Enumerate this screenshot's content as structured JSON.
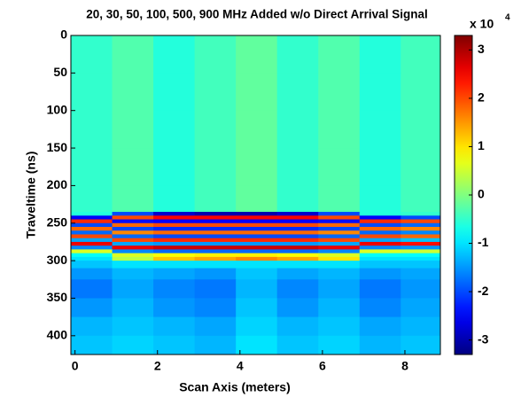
{
  "chart_data": {
    "type": "heatmap",
    "title": "20, 30, 50, 100, 500, 900 MHz Added w/o Direct Arrival Signal",
    "x_label": "Scan Axis (meters)",
    "y_label": "Traveltime (ns)",
    "colorbar_multiplier": "x 10",
    "colorbar_exponent": "4",
    "colormap": "jet",
    "xlim": [
      -0.1,
      8.86
    ],
    "ylim": [
      0,
      425
    ],
    "y_reversed": true,
    "xticks": [
      0,
      2,
      4,
      6,
      8
    ],
    "yticks": [
      0,
      50,
      100,
      150,
      200,
      250,
      300,
      350,
      400
    ],
    "clim": [
      -33000,
      33000
    ],
    "cticks": [
      {
        "value": -30000,
        "label": "-3"
      },
      {
        "value": -20000,
        "label": "-2"
      },
      {
        "value": -10000,
        "label": "-1"
      },
      {
        "value": 0,
        "label": "0"
      },
      {
        "value": 10000,
        "label": "1"
      },
      {
        "value": 20000,
        "label": "2"
      },
      {
        "value": 30000,
        "label": "3"
      }
    ],
    "x_edges": [
      -0.1,
      0.9,
      1.9,
      2.9,
      3.9,
      4.9,
      5.9,
      6.9,
      7.9,
      8.86
    ],
    "y_edges": [
      0,
      50,
      100,
      150,
      200,
      235,
      240,
      245,
      250,
      255,
      260,
      265,
      270,
      275,
      280,
      285,
      290,
      295,
      300,
      310,
      325,
      350,
      375,
      400,
      425
    ],
    "z": [
      [
        -5000,
        -3000,
        -6000,
        -4000,
        -2000,
        -5000,
        -3000,
        -6000,
        -4000
      ],
      [
        -5000,
        -3000,
        -6000,
        -4000,
        -2000,
        -5000,
        -3000,
        -6000,
        -4000
      ],
      [
        -5000,
        -3000,
        -6000,
        -4000,
        -2000,
        -5000,
        -3000,
        -6000,
        -4000
      ],
      [
        -5000,
        -3000,
        -6000,
        -4000,
        -2000,
        -5000,
        -3000,
        -6000,
        -4000
      ],
      [
        -5000,
        -3000,
        -6000,
        -4000,
        -2000,
        -5000,
        -3000,
        -6000,
        -4000
      ],
      [
        -6000,
        -20000,
        -28000,
        -30000,
        -30000,
        -28000,
        -20000,
        -6000,
        -5000
      ],
      [
        -25000,
        20000,
        25000,
        25000,
        25000,
        25000,
        20000,
        -25000,
        -20000
      ],
      [
        22000,
        -24000,
        -25000,
        -25000,
        -25000,
        -25000,
        -24000,
        22000,
        20000
      ],
      [
        -20000,
        18000,
        20000,
        20000,
        20000,
        20000,
        18000,
        -20000,
        -18000
      ],
      [
        18000,
        -20000,
        -22000,
        -22000,
        -22000,
        -22000,
        -20000,
        18000,
        16000
      ],
      [
        -18000,
        16000,
        18000,
        18000,
        18000,
        18000,
        16000,
        -18000,
        -16000
      ],
      [
        20000,
        -18000,
        -20000,
        -20000,
        -20000,
        -20000,
        -18000,
        20000,
        18000
      ],
      [
        -14000,
        20000,
        22000,
        22000,
        22000,
        22000,
        20000,
        -14000,
        -12000
      ],
      [
        26000,
        -14000,
        -15000,
        -15000,
        -15000,
        -15000,
        -14000,
        26000,
        24000
      ],
      [
        -16000,
        26000,
        28000,
        28000,
        28000,
        28000,
        26000,
        -16000,
        -15000
      ],
      [
        6000,
        -16000,
        -18000,
        -18000,
        -18000,
        -18000,
        -16000,
        6000,
        5000
      ],
      [
        -8000,
        6000,
        8000,
        9000,
        9000,
        8000,
        6000,
        -8000,
        -8000
      ],
      [
        -10000,
        4000,
        12000,
        14000,
        16000,
        14000,
        10000,
        -10000,
        -10000
      ],
      [
        -12000,
        -10000,
        -10000,
        -10000,
        -10000,
        -10000,
        -10000,
        -12000,
        -12000
      ],
      [
        -15000,
        -13000,
        -14000,
        -15000,
        -12000,
        -14000,
        -13000,
        -15000,
        -14000
      ],
      [
        -17000,
        -14000,
        -16000,
        -17000,
        -13000,
        -16000,
        -14000,
        -17000,
        -15000
      ],
      [
        -15000,
        -13000,
        -15000,
        -16000,
        -12000,
        -15000,
        -13000,
        -16000,
        -14000
      ],
      [
        -13000,
        -12000,
        -13000,
        -14000,
        -11000,
        -13000,
        -12000,
        -14000,
        -13000
      ],
      [
        -12000,
        -11000,
        -12000,
        -13000,
        -10000,
        -12000,
        -11000,
        -13000,
        -12000
      ]
    ]
  }
}
